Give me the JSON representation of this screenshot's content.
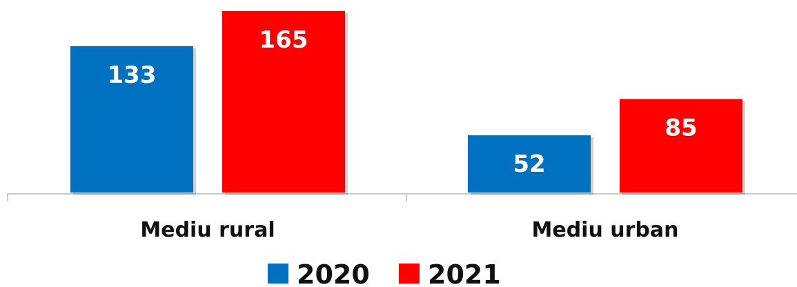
{
  "chart_data": {
    "type": "bar",
    "categories": [
      "Mediu rural",
      "Mediu urban"
    ],
    "series": [
      {
        "name": "2020",
        "values": [
          133,
          52
        ],
        "color": "#0070c0"
      },
      {
        "name": "2021",
        "values": [
          165,
          85
        ],
        "color": "#ff0000"
      }
    ],
    "ylim": [
      0,
      165
    ],
    "data_labels": true,
    "grid": false,
    "legend": "bottom-center",
    "title": "",
    "xlabel": "",
    "ylabel": ""
  }
}
